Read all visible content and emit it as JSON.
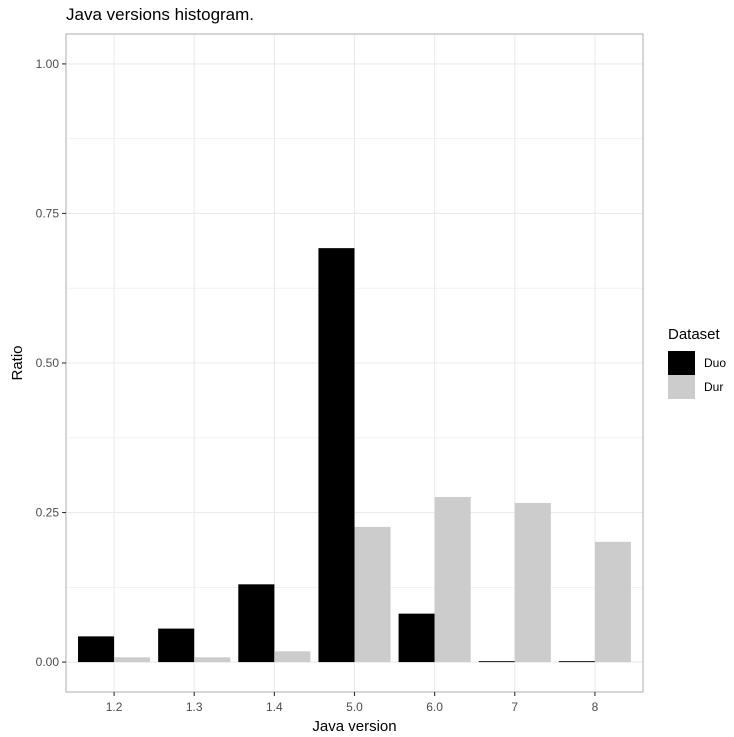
{
  "chart_data": {
    "type": "bar",
    "title": "Java versions histogram.",
    "xlabel": "Java version",
    "ylabel": "Ratio",
    "categories": [
      "1.2",
      "1.3",
      "1.4",
      "5.0",
      "6.0",
      "7",
      "8"
    ],
    "series": [
      {
        "name": "Duo",
        "color": "#000000",
        "values": [
          0.043,
          0.056,
          0.13,
          0.692,
          0.081,
          0.0015,
          0.0015
        ]
      },
      {
        "name": "Dur",
        "color": "#cccccc",
        "values": [
          0.008,
          0.008,
          0.018,
          0.226,
          0.276,
          0.266,
          0.201
        ]
      }
    ],
    "ylim": [
      -0.05,
      1.05
    ],
    "yticks": [
      {
        "value": 0,
        "label": "0.00"
      },
      {
        "value": 0.25,
        "label": "0.25"
      },
      {
        "value": 0.5,
        "label": "0.50"
      },
      {
        "value": 0.75,
        "label": "0.75"
      },
      {
        "value": 1,
        "label": "1.00"
      }
    ],
    "grid": true,
    "legend": {
      "title": "Dataset",
      "position": "right"
    }
  }
}
